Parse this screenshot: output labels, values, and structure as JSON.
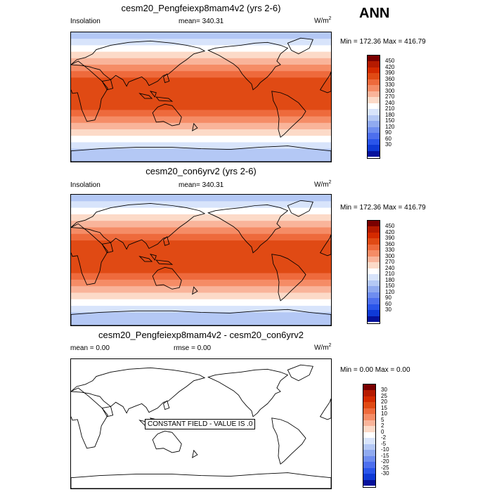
{
  "header": {
    "season": "ANN"
  },
  "chart_data": [
    {
      "type": "heatmap",
      "title": "cesm20_Pengfeiexp8mam4v2 (yrs 2-6)",
      "left_label": "Insolation",
      "center_label": "mean= 340.31",
      "units": "W/m",
      "units_sup": "2",
      "minmax": "Min = 172.36 Max = 416.79",
      "colorbar_ticks": [
        "450",
        "420",
        "390",
        "360",
        "330",
        "300",
        "270",
        "240",
        "210",
        "180",
        "150",
        "120",
        "90",
        "60",
        "30"
      ],
      "colors": [
        "#7a0000",
        "#b51a00",
        "#d42a00",
        "#e04a14",
        "#ee6a3c",
        "#f58c66",
        "#f9b49a",
        "#fcdac8",
        "#ffffff",
        "#d8e4fb",
        "#b4c8f5",
        "#90aaf0",
        "#6e8df0",
        "#4d6fee",
        "#2a55ea",
        "#0f3ad6",
        "#06129c"
      ],
      "band_values": [
        200,
        230,
        265,
        290,
        315,
        340,
        370,
        395,
        410,
        416,
        410,
        395,
        370,
        340,
        315,
        290,
        265,
        230,
        200,
        180
      ]
    },
    {
      "type": "heatmap",
      "title": "cesm20_con6yrv2 (yrs 2-6)",
      "left_label": "Insolation",
      "center_label": "mean= 340.31",
      "units": "W/m",
      "units_sup": "2",
      "minmax": "Min = 172.36 Max = 416.79",
      "colorbar_ticks": [
        "450",
        "420",
        "390",
        "360",
        "330",
        "300",
        "270",
        "240",
        "210",
        "180",
        "150",
        "120",
        "90",
        "60",
        "30"
      ],
      "colors": [
        "#7a0000",
        "#b51a00",
        "#d42a00",
        "#e04a14",
        "#ee6a3c",
        "#f58c66",
        "#f9b49a",
        "#fcdac8",
        "#ffffff",
        "#d8e4fb",
        "#b4c8f5",
        "#90aaf0",
        "#6e8df0",
        "#4d6fee",
        "#2a55ea",
        "#0f3ad6",
        "#06129c"
      ],
      "band_values": [
        200,
        230,
        265,
        290,
        315,
        340,
        370,
        395,
        410,
        416,
        410,
        395,
        370,
        340,
        315,
        290,
        265,
        230,
        200,
        180
      ]
    },
    {
      "type": "heatmap",
      "title": "cesm20_Pengfeiexp8mam4v2 - cesm20_con6yrv2",
      "left_label": "mean =   0.00",
      "center_label": "rmse =    0.00",
      "units": "W/m",
      "units_sup": "2",
      "minmax": "Min =   0.00 Max =   0.00",
      "note": "CONSTANT FIELD - VALUE IS .0",
      "colorbar_ticks": [
        "30",
        "25",
        "20",
        "15",
        "10",
        "5",
        "2",
        "0",
        "-2",
        "-5",
        "-10",
        "-15",
        "-20",
        "-25",
        "-30"
      ],
      "colors": [
        "#7a0000",
        "#b51a00",
        "#d42a00",
        "#e04a14",
        "#ee6a3c",
        "#f58c66",
        "#f9b49a",
        "#fcdac8",
        "#ffffff",
        "#d8e4fb",
        "#b4c8f5",
        "#90aaf0",
        "#6e8df0",
        "#4d6fee",
        "#2a55ea",
        "#0f3ad6",
        "#06129c"
      ],
      "band_values": []
    }
  ]
}
